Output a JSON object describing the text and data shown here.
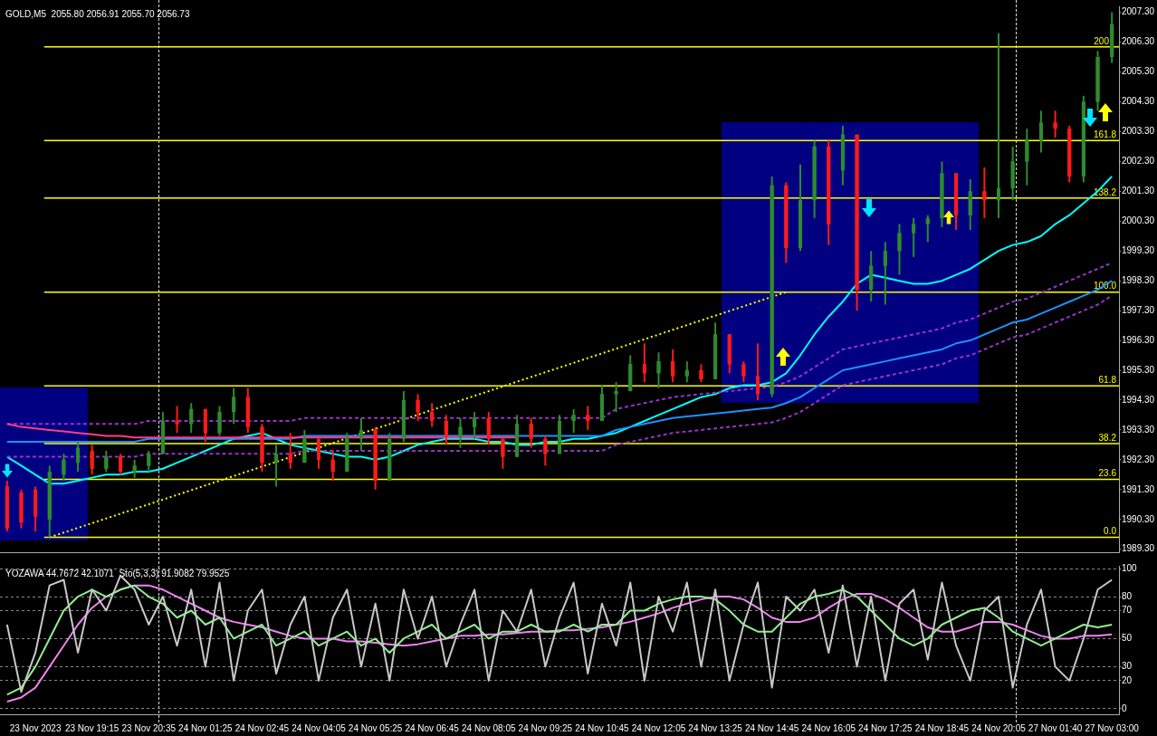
{
  "chart_data": [
    {
      "type": "candlestick",
      "title": "GOLD,M5  2055.80 2056.91 2055.70 2056.73",
      "categories": [
        null,
        null,
        null,
        null,
        null,
        null,
        null,
        null,
        null,
        null,
        null,
        null,
        null,
        null,
        null,
        null,
        null,
        null,
        null,
        null,
        null,
        null,
        null,
        null,
        null,
        null,
        null,
        null,
        null,
        null,
        null,
        null,
        null,
        null,
        null,
        null,
        null,
        null,
        null,
        null,
        null,
        null,
        null,
        null,
        null,
        null,
        null,
        null,
        null,
        null,
        null,
        null,
        null,
        null,
        null,
        null,
        null,
        null,
        null,
        null,
        null,
        null,
        null,
        null,
        null,
        null,
        null,
        null,
        null,
        null,
        null,
        null,
        null,
        null,
        null,
        null,
        null,
        null,
        null
      ],
      "ohlc": [
        [
          1991.4,
          1991.6,
          1989.9,
          1990.0
        ],
        [
          1991.2,
          1991.3,
          1990.0,
          1990.2
        ],
        [
          1991.3,
          1991.4,
          1989.9,
          1990.4
        ],
        [
          1990.3,
          1992.1,
          1989.7,
          1991.9
        ],
        [
          1991.8,
          1992.5,
          1991.6,
          1992.3
        ],
        [
          1992.2,
          1992.9,
          1991.9,
          1992.7
        ],
        [
          1992.6,
          1992.8,
          1991.8,
          1992.0
        ],
        [
          1992.0,
          1992.6,
          1991.9,
          1992.4
        ],
        [
          1992.4,
          1992.5,
          1991.8,
          1991.9
        ],
        [
          1991.9,
          1992.3,
          1991.7,
          1992.1
        ],
        [
          1992.1,
          1992.6,
          1991.9,
          1992.5
        ],
        [
          1992.5,
          1993.9,
          1992.5,
          1993.6
        ],
        [
          1993.6,
          1994.1,
          1993.2,
          1993.5
        ],
        [
          1993.5,
          1994.2,
          1993.2,
          1994.0
        ],
        [
          1994.0,
          1994.0,
          1992.9,
          1993.2
        ],
        [
          1993.2,
          1994.1,
          1993.1,
          1993.9
        ],
        [
          1993.9,
          1994.7,
          1993.5,
          1994.4
        ],
        [
          1994.4,
          1994.7,
          1993.2,
          1993.4
        ],
        [
          1993.4,
          1993.5,
          1991.9,
          1992.2
        ],
        [
          1992.2,
          1992.8,
          1991.4,
          1992.5
        ],
        [
          1992.5,
          1993.2,
          1992.0,
          1992.2
        ],
        [
          1992.2,
          1993.3,
          1992.2,
          1993.0
        ],
        [
          1993.0,
          1993.0,
          1992.0,
          1992.3
        ],
        [
          1992.3,
          1992.6,
          1991.6,
          1991.9
        ],
        [
          1991.9,
          1993.2,
          1991.9,
          1993.0
        ],
        [
          1993.0,
          1993.7,
          1992.6,
          1993.3
        ],
        [
          1993.3,
          1993.4,
          1991.3,
          1991.6
        ],
        [
          1991.6,
          1993.2,
          1991.6,
          1993.0
        ],
        [
          1993.0,
          1994.6,
          1992.9,
          1994.3
        ],
        [
          1994.3,
          1994.5,
          1993.6,
          1993.9
        ],
        [
          1993.9,
          1994.2,
          1993.4,
          1993.6
        ],
        [
          1993.6,
          1993.8,
          1992.8,
          1993.1
        ],
        [
          1993.1,
          1993.7,
          1992.7,
          1993.4
        ],
        [
          1993.4,
          1993.9,
          1993.0,
          1993.7
        ],
        [
          1993.7,
          1993.9,
          1992.8,
          1993.0
        ],
        [
          1993.0,
          1993.0,
          1992.0,
          1992.4
        ],
        [
          1992.4,
          1993.8,
          1992.4,
          1993.5
        ],
        [
          1993.5,
          1993.7,
          1992.7,
          1993.0
        ],
        [
          1993.0,
          1993.1,
          1992.1,
          1992.5
        ],
        [
          1992.5,
          1993.8,
          1992.5,
          1993.6
        ],
        [
          1993.6,
          1994.0,
          1993.2,
          1993.8
        ],
        [
          1993.8,
          1994.1,
          1993.3,
          1993.6
        ],
        [
          1993.6,
          1994.8,
          1993.6,
          1994.5
        ],
        [
          1994.5,
          1994.9,
          1993.9,
          1994.6
        ],
        [
          1994.6,
          1995.8,
          1994.6,
          1995.5
        ],
        [
          1995.5,
          1996.2,
          1994.9,
          1995.2
        ],
        [
          1995.2,
          1995.9,
          1994.7,
          1995.6
        ],
        [
          1995.6,
          1996.0,
          1994.9,
          1995.1
        ],
        [
          1995.1,
          1995.6,
          1994.9,
          1995.3
        ],
        [
          1995.3,
          1995.5,
          1994.9,
          1995.0
        ],
        [
          1995.0,
          1996.9,
          1995.0,
          1996.5
        ],
        [
          1996.5,
          1996.5,
          1995.2,
          1995.5
        ],
        [
          1995.5,
          1995.6,
          1994.9,
          1995.1
        ],
        [
          1995.1,
          1996.2,
          1994.3,
          1994.5
        ],
        [
          1994.5,
          2001.8,
          1994.4,
          2001.5
        ],
        [
          2001.5,
          2001.6,
          1998.9,
          1999.4
        ],
        [
          1999.4,
          2002.2,
          1999.3,
          2001.0
        ],
        [
          2001.0,
          2003.0,
          2000.4,
          2002.8
        ],
        [
          2002.8,
          2003.0,
          1999.5,
          2000.2
        ],
        [
          2002.0,
          2003.5,
          2001.5,
          2003.2
        ],
        [
          2003.2,
          2003.2,
          1997.3,
          1998.0
        ],
        [
          1998.0,
          1999.3,
          1997.6,
          1998.8
        ],
        [
          1998.8,
          1999.6,
          1997.5,
          1999.3
        ],
        [
          1999.3,
          2000.2,
          1998.5,
          1999.9
        ],
        [
          1999.9,
          2000.4,
          1999.1,
          2000.2
        ],
        [
          2000.2,
          2000.5,
          1999.6,
          2000.4
        ],
        [
          2000.4,
          2002.3,
          2000.1,
          2001.9
        ],
        [
          2001.9,
          2001.9,
          2000.0,
          2000.5
        ],
        [
          2000.5,
          2001.7,
          2000.0,
          2001.3
        ],
        [
          2001.3,
          2002.1,
          2000.4,
          2001.0
        ],
        [
          2001.0,
          2006.6,
          2000.4,
          2001.4
        ],
        [
          2001.4,
          2002.8,
          2001.0,
          2002.3
        ],
        [
          2002.3,
          2003.4,
          2001.5,
          2003.0
        ],
        [
          2003.0,
          2004.0,
          2002.6,
          2003.6
        ],
        [
          2003.6,
          2004.0,
          2003.1,
          2003.4
        ],
        [
          2003.4,
          2003.5,
          2001.6,
          2001.8
        ],
        [
          2001.8,
          2004.5,
          2001.6,
          2004.3
        ],
        [
          2004.3,
          2006.0,
          2004.0,
          2005.8
        ],
        [
          2005.8,
          2007.3,
          2005.6,
          2006.9
        ]
      ],
      "colors": [
        "#ff1a1a",
        "#ff1a1a",
        "#ff1a1a",
        "#2e8b2e",
        "#2e8b2e",
        "#2e8b2e",
        "#ff1a1a",
        "#2e8b2e",
        "#ff1a1a",
        "#2e8b2e",
        "#2e8b2e",
        "#2e8b2e",
        "#ff1a1a",
        "#2e8b2e",
        "#ff1a1a",
        "#2e8b2e",
        "#2e8b2e",
        "#ff1a1a",
        "#ff1a1a",
        "#2e8b2e",
        "#ff1a1a",
        "#2e8b2e",
        "#ff1a1a",
        "#ff1a1a",
        "#2e8b2e",
        "#2e8b2e",
        "#ff1a1a",
        "#2e8b2e",
        "#2e8b2e",
        "#ff1a1a",
        "#ff1a1a",
        "#ff1a1a",
        "#2e8b2e",
        "#2e8b2e",
        "#ff1a1a",
        "#ff1a1a",
        "#2e8b2e",
        "#ff1a1a",
        "#ff1a1a",
        "#2e8b2e",
        "#2e8b2e",
        "#ff1a1a",
        "#2e8b2e",
        "#2e8b2e",
        "#2e8b2e",
        "#ff1a1a",
        "#2e8b2e",
        "#ff1a1a",
        "#2e8b2e",
        "#ff1a1a",
        "#2e8b2e",
        "#ff1a1a",
        "#ff1a1a",
        "#ff1a1a",
        "#2e8b2e",
        "#ff1a1a",
        "#2e8b2e",
        "#2e8b2e",
        "#ff1a1a",
        "#2e8b2e",
        "#ff1a1a",
        "#2e8b2e",
        "#2e8b2e",
        "#2e8b2e",
        "#2e8b2e",
        "#2e8b2e",
        "#2e8b2e",
        "#ff1a1a",
        "#2e8b2e",
        "#ff1a1a",
        "#2e8b2e",
        "#2e8b2e",
        "#2e8b2e",
        "#2e8b2e",
        "#ff1a1a",
        "#ff1a1a",
        "#2e8b2e",
        "#2e8b2e",
        "#2e8b2e"
      ],
      "ylim": [
        1989.2,
        2007.5
      ],
      "yticks": [
        {
          "value": 1989.3,
          "label": "1989.30"
        },
        {
          "value": 1990.3,
          "label": "1990.30"
        },
        {
          "value": 1991.3,
          "label": "1991.30"
        },
        {
          "value": 1992.3,
          "label": "1992.30"
        },
        {
          "value": 1993.3,
          "label": "1993.30"
        },
        {
          "value": 1994.3,
          "label": "1994.30"
        },
        {
          "value": 1995.3,
          "label": "1995.30"
        },
        {
          "value": 1996.3,
          "label": "1996.30"
        },
        {
          "value": 1997.3,
          "label": "1997.30"
        },
        {
          "value": 1998.3,
          "label": "1998.30"
        },
        {
          "value": 1999.3,
          "label": "1999.30"
        },
        {
          "value": 2000.3,
          "label": "2000.30"
        },
        {
          "value": 2001.3,
          "label": "2001.30"
        },
        {
          "value": 2002.3,
          "label": "2002.30"
        },
        {
          "value": 2003.3,
          "label": "2003.30"
        },
        {
          "value": 2004.3,
          "label": "2004.30"
        },
        {
          "value": 2005.3,
          "label": "2005.30"
        },
        {
          "value": 2006.3,
          "label": "2006.30"
        },
        {
          "value": 2007.3,
          "label": "2007.30"
        }
      ],
      "tick_labels": "y",
      "grid": false,
      "legend": false,
      "ref_lines": [
        {
          "axis": "y",
          "value": 1989.7,
          "color": "#ffff00"
        },
        {
          "axis": "y",
          "value": 1991.64,
          "color": "#ffff00"
        },
        {
          "axis": "y",
          "value": 1992.84,
          "color": "#ffff00"
        },
        {
          "axis": "y",
          "value": 1994.78,
          "color": "#ffff00"
        },
        {
          "axis": "y",
          "value": 1997.92,
          "color": "#ffff00"
        },
        {
          "axis": "y",
          "value": 2001.07,
          "color": "#ffff00"
        },
        {
          "axis": "y",
          "value": 2003.0,
          "color": "#ffff00"
        },
        {
          "axis": "y",
          "value": 2006.14,
          "color": "#ffff00"
        }
      ],
      "annotations": [
        {
          "text": "0.0",
          "y": 1989.7
        },
        {
          "text": "23.6",
          "y": 1991.64
        },
        {
          "text": "38.2",
          "y": 1992.84
        },
        {
          "text": "61.8",
          "y": 1994.78
        },
        {
          "text": "100.0",
          "y": 1997.92
        },
        {
          "text": "138.2",
          "y": 2001.07
        },
        {
          "text": "161.8",
          "y": 2003.0
        },
        {
          "text": "200",
          "y": 2006.14
        }
      ],
      "series": [
        {
          "type": "line",
          "color": "#ff3c8c",
          "line_style": "solid",
          "values": [
            1993.5,
            1993.4,
            1993.35,
            1993.3,
            1993.25,
            1993.2,
            1993.15,
            1993.1,
            1993.1,
            1993.05,
            1993.05,
            1993.05,
            1993.05,
            1993.05,
            1993.05,
            1993.05,
            1993.05,
            1993.05,
            1993.05,
            1993.05,
            1993.05,
            1993.05,
            1993.05,
            1993.05,
            1993.05,
            1993.05,
            1993.05,
            1993.05,
            1993.05,
            1993.05,
            1993.05,
            1993.05,
            1993.05,
            1993.05,
            1993.05,
            1993.05,
            1993.05,
            null,
            null,
            null,
            null,
            null,
            null,
            null,
            null,
            null,
            null,
            null,
            null,
            null,
            null,
            null,
            null,
            null,
            null,
            null,
            null,
            null,
            null,
            null,
            null,
            null,
            null,
            null,
            null,
            null,
            null,
            null,
            null,
            null,
            null,
            null,
            null,
            null,
            null,
            null,
            null,
            null,
            null
          ]
        },
        {
          "type": "line",
          "color": "#9932cc",
          "line_style": "dashed",
          "values": [
            1993.5,
            1993.5,
            1993.5,
            1993.5,
            1993.5,
            1993.5,
            1993.5,
            1993.5,
            1993.5,
            1993.5,
            1993.6,
            1993.6,
            1993.6,
            1993.6,
            1993.6,
            1993.6,
            1993.6,
            1993.6,
            1993.6,
            1993.6,
            1993.6,
            1993.7,
            1993.7,
            1993.7,
            1993.7,
            1993.7,
            1993.7,
            1993.7,
            1993.7,
            1993.7,
            1993.7,
            1993.7,
            1993.7,
            1993.7,
            1993.7,
            1993.7,
            1993.7,
            1993.7,
            1993.7,
            1993.7,
            1993.7,
            1993.7,
            1993.7,
            1994.0,
            1994.1,
            1994.2,
            1994.3,
            1994.4,
            1994.45,
            1994.5,
            1994.55,
            1994.6,
            1994.65,
            null,
            1994.75,
            1994.9,
            1995.1,
            1995.4,
            1995.7,
            1996.0,
            1996.1,
            1996.2,
            1996.3,
            1996.4,
            1996.5,
            1996.6,
            1996.7,
            1996.9,
            1997.0,
            1997.2,
            1997.4,
            1997.6,
            1997.7,
            1997.9,
            1998.1,
            1998.3,
            1998.5,
            1998.7,
            1998.9
          ]
        },
        {
          "type": "line",
          "color": "#9932cc",
          "line_style": "dashed",
          "values": [
            1992.4,
            1992.4,
            1992.4,
            1992.4,
            1992.4,
            1992.4,
            1992.4,
            1992.4,
            1992.4,
            1992.4,
            1992.5,
            1992.5,
            1992.5,
            1992.5,
            1992.5,
            1992.5,
            1992.5,
            1992.5,
            null,
            1992.5,
            1992.5,
            1992.6,
            1992.6,
            1992.6,
            1992.6,
            1992.6,
            null,
            1992.6,
            1992.6,
            1992.6,
            1992.6,
            1992.6,
            1992.6,
            1992.6,
            1992.6,
            null,
            1992.6,
            1992.6,
            1992.6,
            null,
            1992.6,
            1992.6,
            1992.6,
            1992.8,
            1992.9,
            1993.0,
            1993.1,
            1993.2,
            1993.25,
            1993.3,
            1993.35,
            1993.4,
            1993.45,
            1993.5,
            1993.55,
            1993.7,
            1993.9,
            1994.2,
            1994.5,
            1994.8,
            1994.9,
            1995.0,
            1995.1,
            1995.2,
            1995.3,
            1995.4,
            1995.5,
            1995.7,
            1995.8,
            1996.0,
            1996.2,
            1996.4,
            1996.5,
            1996.7,
            1996.9,
            1997.1,
            1997.3,
            1997.5,
            1997.8
          ]
        },
        {
          "type": "line",
          "color": "#1e90ff",
          "line_style": "solid",
          "values": [
            1992.9,
            1992.9,
            1992.9,
            1992.9,
            1992.9,
            1992.9,
            1992.9,
            1992.9,
            1992.9,
            1992.9,
            1993.0,
            1993.0,
            1993.0,
            1993.0,
            1993.0,
            1993.0,
            1993.0,
            1993.0,
            1993.0,
            1993.0,
            1993.0,
            1993.1,
            1993.1,
            1993.1,
            1993.1,
            1993.1,
            1993.1,
            1993.1,
            1993.1,
            1993.1,
            1993.1,
            1993.1,
            1993.1,
            1993.1,
            1993.1,
            1993.1,
            1993.1,
            1993.1,
            1993.1,
            1993.1,
            1993.1,
            1993.1,
            1993.1,
            1993.3,
            1993.4,
            1993.5,
            1993.6,
            1993.7,
            1993.75,
            1993.8,
            1993.85,
            1993.9,
            1993.95,
            1994.0,
            1994.05,
            1994.2,
            1994.4,
            1994.7,
            1995.0,
            1995.3,
            1995.4,
            1995.5,
            1995.6,
            1995.7,
            1995.8,
            1995.9,
            1996.0,
            1996.2,
            1996.3,
            1996.5,
            1996.7,
            1996.9,
            1997.0,
            1997.2,
            1997.4,
            1997.6,
            1997.8,
            1998.0,
            1998.3
          ]
        },
        {
          "type": "line",
          "color": "#00ffff",
          "line_style": "solid",
          "values": [
            1992.4,
            1992.1,
            1991.8,
            1991.5,
            1991.5,
            1991.6,
            1991.7,
            1991.8,
            1991.8,
            1991.9,
            1991.9,
            1992.0,
            1992.2,
            1992.4,
            1992.6,
            1992.8,
            1993.0,
            1993.1,
            1993.2,
            1993.0,
            1992.8,
            1992.7,
            1992.6,
            1992.5,
            1992.4,
            1992.4,
            1992.3,
            1992.4,
            1992.6,
            1992.8,
            1992.9,
            1993.0,
            1993.0,
            1993.0,
            1992.9,
            1992.9,
            1992.8,
            1992.8,
            1992.9,
            1992.9,
            1993.0,
            1993.0,
            1993.1,
            1993.2,
            1993.4,
            1993.6,
            1993.8,
            1994.0,
            1994.2,
            1994.4,
            1994.5,
            1994.7,
            1994.8,
            1994.8,
            1994.9,
            1995.2,
            1995.8,
            1996.5,
            1997.1,
            1997.6,
            1998.2,
            1998.5,
            1998.4,
            1998.3,
            1998.2,
            1998.2,
            1998.3,
            1998.5,
            1998.7,
            1999.0,
            1999.3,
            1999.5,
            1999.6,
            1999.8,
            2000.2,
            2000.5,
            2000.9,
            2001.3,
            2001.8
          ]
        },
        {
          "type": "line",
          "color": "#ffff00",
          "line_style": "dotted",
          "values": [
            null,
            null,
            null,
            1989.7,
            null,
            null,
            null,
            null,
            null,
            null,
            null,
            null,
            null,
            null,
            null,
            null,
            null,
            null,
            null,
            null,
            null,
            null,
            null,
            null,
            null,
            null,
            null,
            null,
            null,
            null,
            null,
            null,
            null,
            null,
            null,
            null,
            null,
            null,
            null,
            null,
            null,
            null,
            null,
            null,
            null,
            null,
            null,
            null,
            null,
            null,
            null,
            null,
            null,
            null,
            null,
            1997.92,
            null,
            null,
            null,
            null,
            null,
            null,
            null,
            null,
            null,
            null,
            null,
            null,
            null,
            null,
            null,
            null,
            null,
            null,
            null,
            null,
            null,
            null,
            null
          ]
        }
      ]
    },
    {
      "type": "line",
      "title": "YOZAWA 44.7672 42.1071  Sto(5,3,3) 91.9082 79.9525",
      "categories": [
        null,
        null,
        "23 Nov 2023",
        null,
        null,
        null,
        "23 Nov 19:15",
        null,
        null,
        null,
        "23 Nov 20:35",
        null,
        null,
        null,
        "24 Nov 01:25",
        null,
        null,
        null,
        "24 Nov 02:45",
        null,
        null,
        null,
        "24 Nov 04:05",
        null,
        null,
        null,
        "24 Nov 05:25",
        null,
        null,
        null,
        "24 Nov 06:45",
        null,
        null,
        null,
        "24 Nov 08:05",
        null,
        null,
        null,
        "24 Nov 09:25",
        null,
        null,
        null,
        "24 Nov 10:45",
        null,
        null,
        null,
        "24 Nov 12:05",
        null,
        null,
        null,
        "24 Nov 13:25",
        null,
        null,
        null,
        "24 Nov 14:45",
        null,
        null,
        null,
        "24 Nov 16:05",
        null,
        null,
        null,
        "24 Nov 17:25",
        null,
        null,
        null,
        "24 Nov 18:45",
        null,
        null,
        null,
        "24 Nov 20:05",
        null,
        null,
        null,
        "27 Nov 01:40",
        null,
        null,
        null,
        "27 Nov 03:00"
      ],
      "ylim": [
        -4,
        102
      ],
      "yticks": [
        0,
        20,
        30,
        50,
        70,
        80,
        100
      ],
      "grid": "y",
      "legend": false,
      "series": [
        {
          "color": "#c8c8c8",
          "values": [
            60,
            12,
            40,
            88,
            92,
            40,
            85,
            70,
            95,
            85,
            60,
            80,
            45,
            85,
            30,
            90,
            20,
            70,
            85,
            25,
            60,
            80,
            20,
            65,
            85,
            30,
            75,
            20,
            85,
            50,
            80,
            30,
            60,
            85,
            20,
            70,
            55,
            85,
            30,
            65,
            90,
            25,
            75,
            45,
            90,
            20,
            80,
            55,
            90,
            30,
            85,
            20,
            60,
            90,
            15,
            80,
            70,
            85,
            40,
            88,
            30,
            80,
            20,
            75,
            85,
            35,
            90,
            45,
            20,
            70,
            80,
            15,
            60,
            85,
            30,
            20,
            50,
            85,
            92
          ]
        },
        {
          "color": "#90ee90",
          "values": [
            10,
            15,
            30,
            50,
            70,
            80,
            85,
            80,
            85,
            88,
            80,
            75,
            65,
            70,
            60,
            65,
            50,
            55,
            60,
            45,
            50,
            55,
            45,
            50,
            55,
            45,
            50,
            40,
            50,
            55,
            60,
            50,
            55,
            60,
            50,
            55,
            55,
            60,
            55,
            55,
            60,
            55,
            60,
            60,
            70,
            70,
            75,
            78,
            80,
            80,
            78,
            70,
            60,
            55,
            55,
            65,
            75,
            80,
            82,
            85,
            80,
            70,
            60,
            50,
            45,
            50,
            60,
            65,
            70,
            72,
            65,
            55,
            50,
            45,
            50,
            55,
            60,
            58,
            60
          ]
        },
        {
          "color": "#ee82ee",
          "values": [
            5,
            8,
            15,
            30,
            45,
            60,
            72,
            80,
            85,
            88,
            88,
            85,
            80,
            75,
            70,
            65,
            62,
            60,
            58,
            55,
            52,
            50,
            50,
            50,
            48,
            48,
            47,
            46,
            45,
            46,
            48,
            50,
            52,
            52,
            53,
            53,
            54,
            55,
            55,
            56,
            56,
            57,
            58,
            60,
            62,
            65,
            68,
            72,
            75,
            78,
            80,
            80,
            78,
            72,
            65,
            62,
            62,
            65,
            72,
            78,
            82,
            82,
            78,
            72,
            65,
            58,
            55,
            55,
            58,
            62,
            62,
            60,
            56,
            52,
            50,
            50,
            52,
            52,
            53
          ]
        }
      ]
    }
  ]
}
